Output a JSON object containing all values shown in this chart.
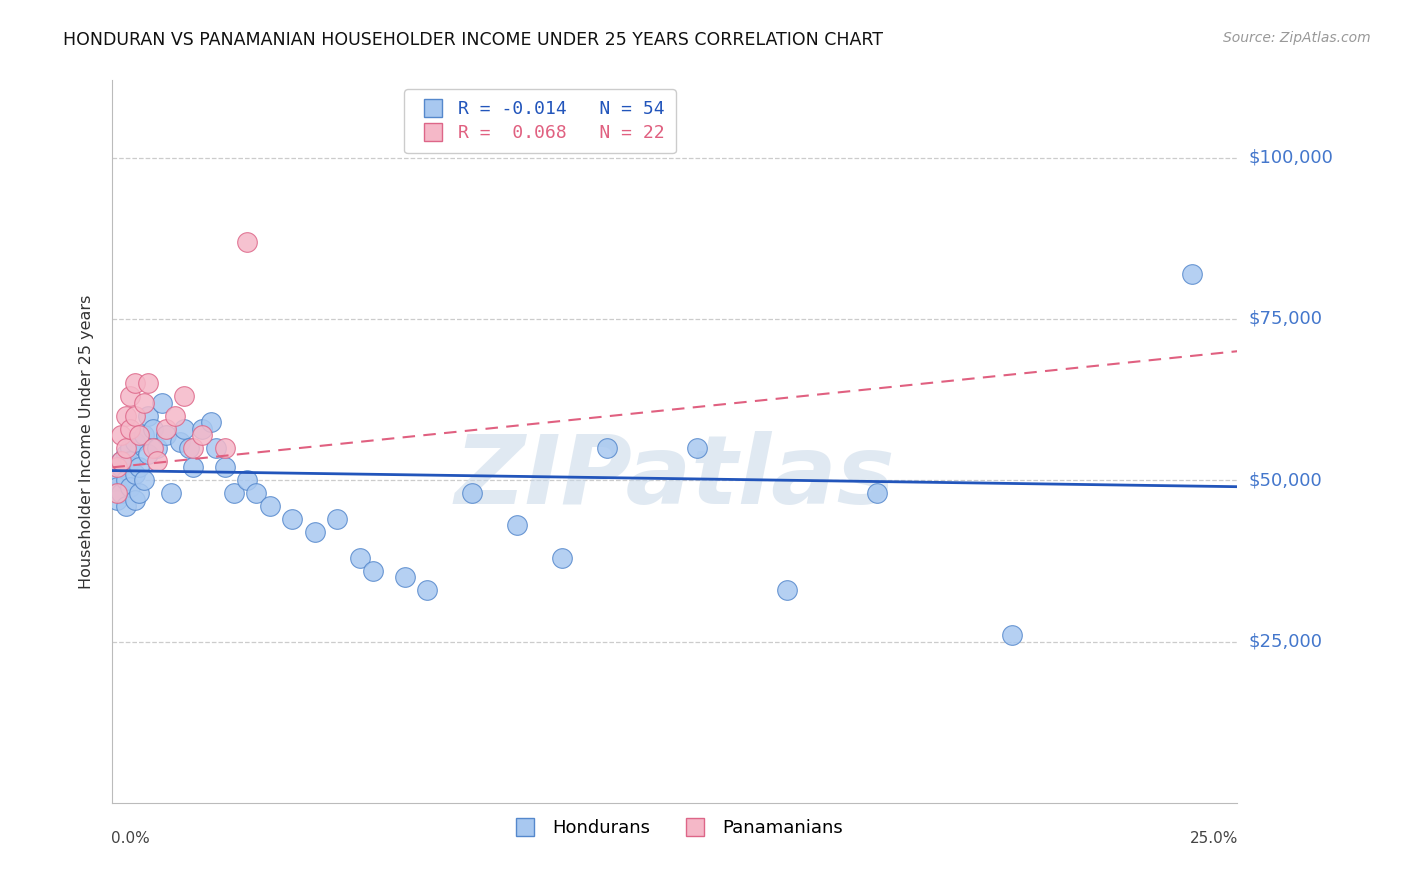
{
  "title": "HONDURAN VS PANAMANIAN HOUSEHOLDER INCOME UNDER 25 YEARS CORRELATION CHART",
  "source": "Source: ZipAtlas.com",
  "ylabel": "Householder Income Under 25 years",
  "watermark": "ZIPatlas",
  "honduran_color": "#A8C8F0",
  "panamanian_color": "#F5B8C8",
  "honduran_edge_color": "#5588CC",
  "panamanian_edge_color": "#DD6688",
  "honduran_line_color": "#2255BB",
  "panamanian_line_color": "#E06080",
  "R_honduran": -0.014,
  "N_honduran": 54,
  "R_panamanian": 0.068,
  "N_panamanian": 22,
  "ytick_labels": [
    "$25,000",
    "$50,000",
    "$75,000",
    "$100,000"
  ],
  "ytick_values": [
    25000,
    50000,
    75000,
    100000
  ],
  "ymin": 0,
  "ymax": 112000,
  "xmin": 0.0,
  "xmax": 0.25,
  "right_label_color": "#4477CC",
  "honduran_x": [
    0.001,
    0.001,
    0.001,
    0.002,
    0.002,
    0.002,
    0.003,
    0.003,
    0.003,
    0.004,
    0.004,
    0.004,
    0.005,
    0.005,
    0.005,
    0.006,
    0.006,
    0.007,
    0.007,
    0.008,
    0.008,
    0.009,
    0.01,
    0.011,
    0.012,
    0.013,
    0.015,
    0.016,
    0.017,
    0.018,
    0.02,
    0.022,
    0.023,
    0.025,
    0.027,
    0.03,
    0.032,
    0.035,
    0.04,
    0.045,
    0.05,
    0.055,
    0.058,
    0.065,
    0.07,
    0.08,
    0.09,
    0.1,
    0.11,
    0.13,
    0.15,
    0.17,
    0.2,
    0.24
  ],
  "honduran_y": [
    51000,
    49000,
    47000,
    52000,
    48000,
    53000,
    50000,
    54000,
    46000,
    55000,
    49000,
    53000,
    51000,
    47000,
    56000,
    52000,
    48000,
    57000,
    50000,
    54000,
    60000,
    58000,
    55000,
    62000,
    57000,
    48000,
    56000,
    58000,
    55000,
    52000,
    58000,
    59000,
    55000,
    52000,
    48000,
    50000,
    48000,
    46000,
    44000,
    42000,
    44000,
    38000,
    36000,
    35000,
    33000,
    48000,
    43000,
    38000,
    55000,
    55000,
    33000,
    48000,
    26000,
    82000
  ],
  "panamanian_x": [
    0.001,
    0.001,
    0.002,
    0.002,
    0.003,
    0.003,
    0.004,
    0.004,
    0.005,
    0.005,
    0.006,
    0.007,
    0.008,
    0.009,
    0.01,
    0.012,
    0.014,
    0.016,
    0.018,
    0.02,
    0.025,
    0.03
  ],
  "panamanian_y": [
    52000,
    48000,
    57000,
    53000,
    60000,
    55000,
    63000,
    58000,
    65000,
    60000,
    57000,
    62000,
    65000,
    55000,
    53000,
    58000,
    60000,
    63000,
    55000,
    57000,
    55000,
    87000
  ]
}
